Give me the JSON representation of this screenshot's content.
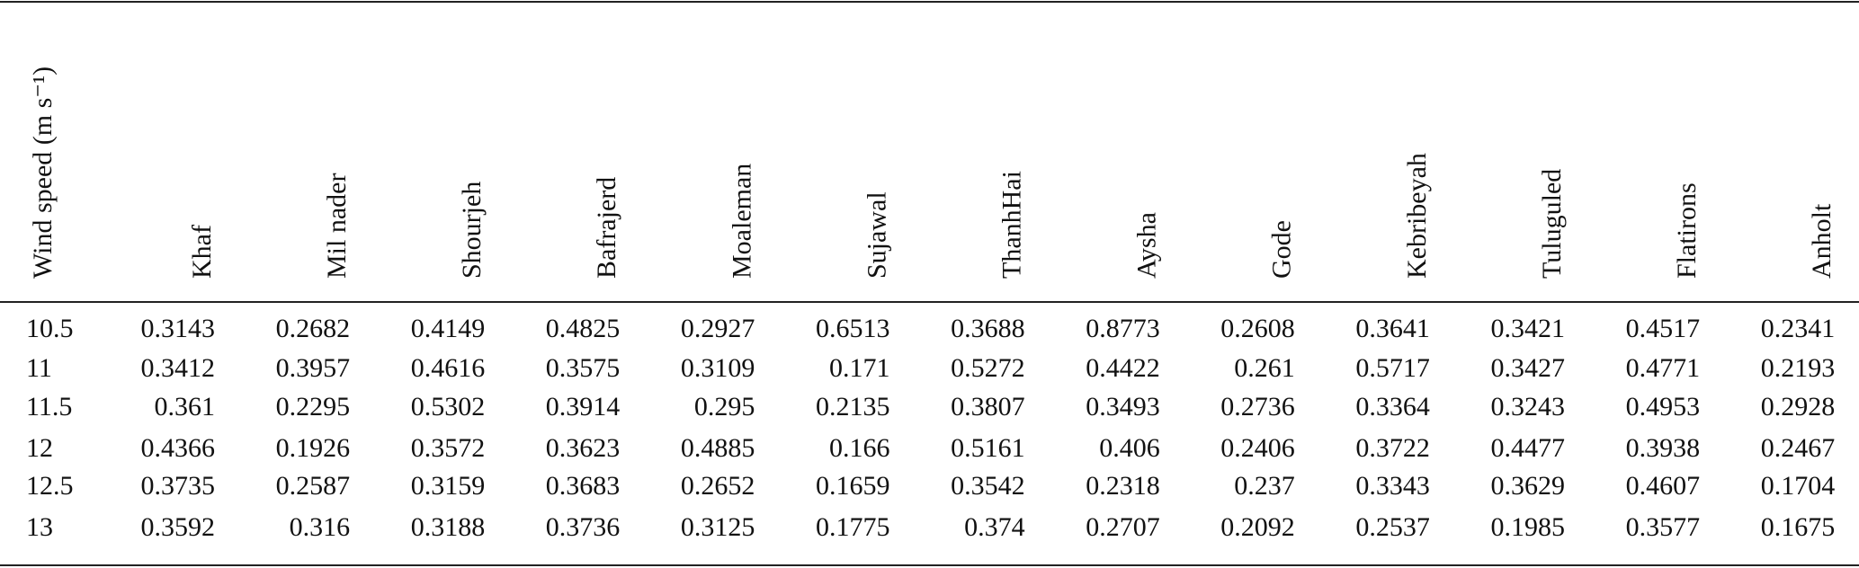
{
  "table": {
    "columns": [
      "Wind speed (m s⁻¹)",
      "Khaf",
      "Mil nader",
      "Shourjeh",
      "Bafrajerd",
      "Moaleman",
      "Sujawal",
      "ThanhHai",
      "Aysha",
      "Gode",
      "Kebribeyah",
      "Tuluguled",
      "Flatirons",
      "Anholt"
    ],
    "rows": [
      [
        10.5,
        0.3143,
        0.2682,
        0.4149,
        0.4825,
        0.2927,
        0.6513,
        0.3688,
        0.8773,
        0.2608,
        0.3641,
        0.3421,
        0.4517,
        0.2341
      ],
      [
        11,
        0.3412,
        0.3957,
        0.4616,
        0.3575,
        0.3109,
        0.171,
        0.5272,
        0.4422,
        0.261,
        0.5717,
        0.3427,
        0.4771,
        0.2193
      ],
      [
        11.5,
        0.361,
        0.2295,
        0.5302,
        0.3914,
        0.295,
        0.2135,
        0.3807,
        0.3493,
        0.2736,
        0.3364,
        0.3243,
        0.4953,
        0.2928
      ],
      [
        12,
        0.4366,
        0.1926,
        0.3572,
        0.3623,
        0.4885,
        0.166,
        0.5161,
        0.406,
        0.2406,
        0.3722,
        0.4477,
        0.3938,
        0.2467
      ],
      [
        12.5,
        0.3735,
        0.2587,
        0.3159,
        0.3683,
        0.2652,
        0.1659,
        0.3542,
        0.2318,
        0.237,
        0.3343,
        0.3629,
        0.4607,
        0.1704
      ],
      [
        13,
        0.3592,
        0.316,
        0.3188,
        0.3736,
        0.3125,
        0.1775,
        0.374,
        0.2707,
        0.2092,
        0.2537,
        0.1985,
        0.3577,
        0.1675
      ]
    ]
  }
}
